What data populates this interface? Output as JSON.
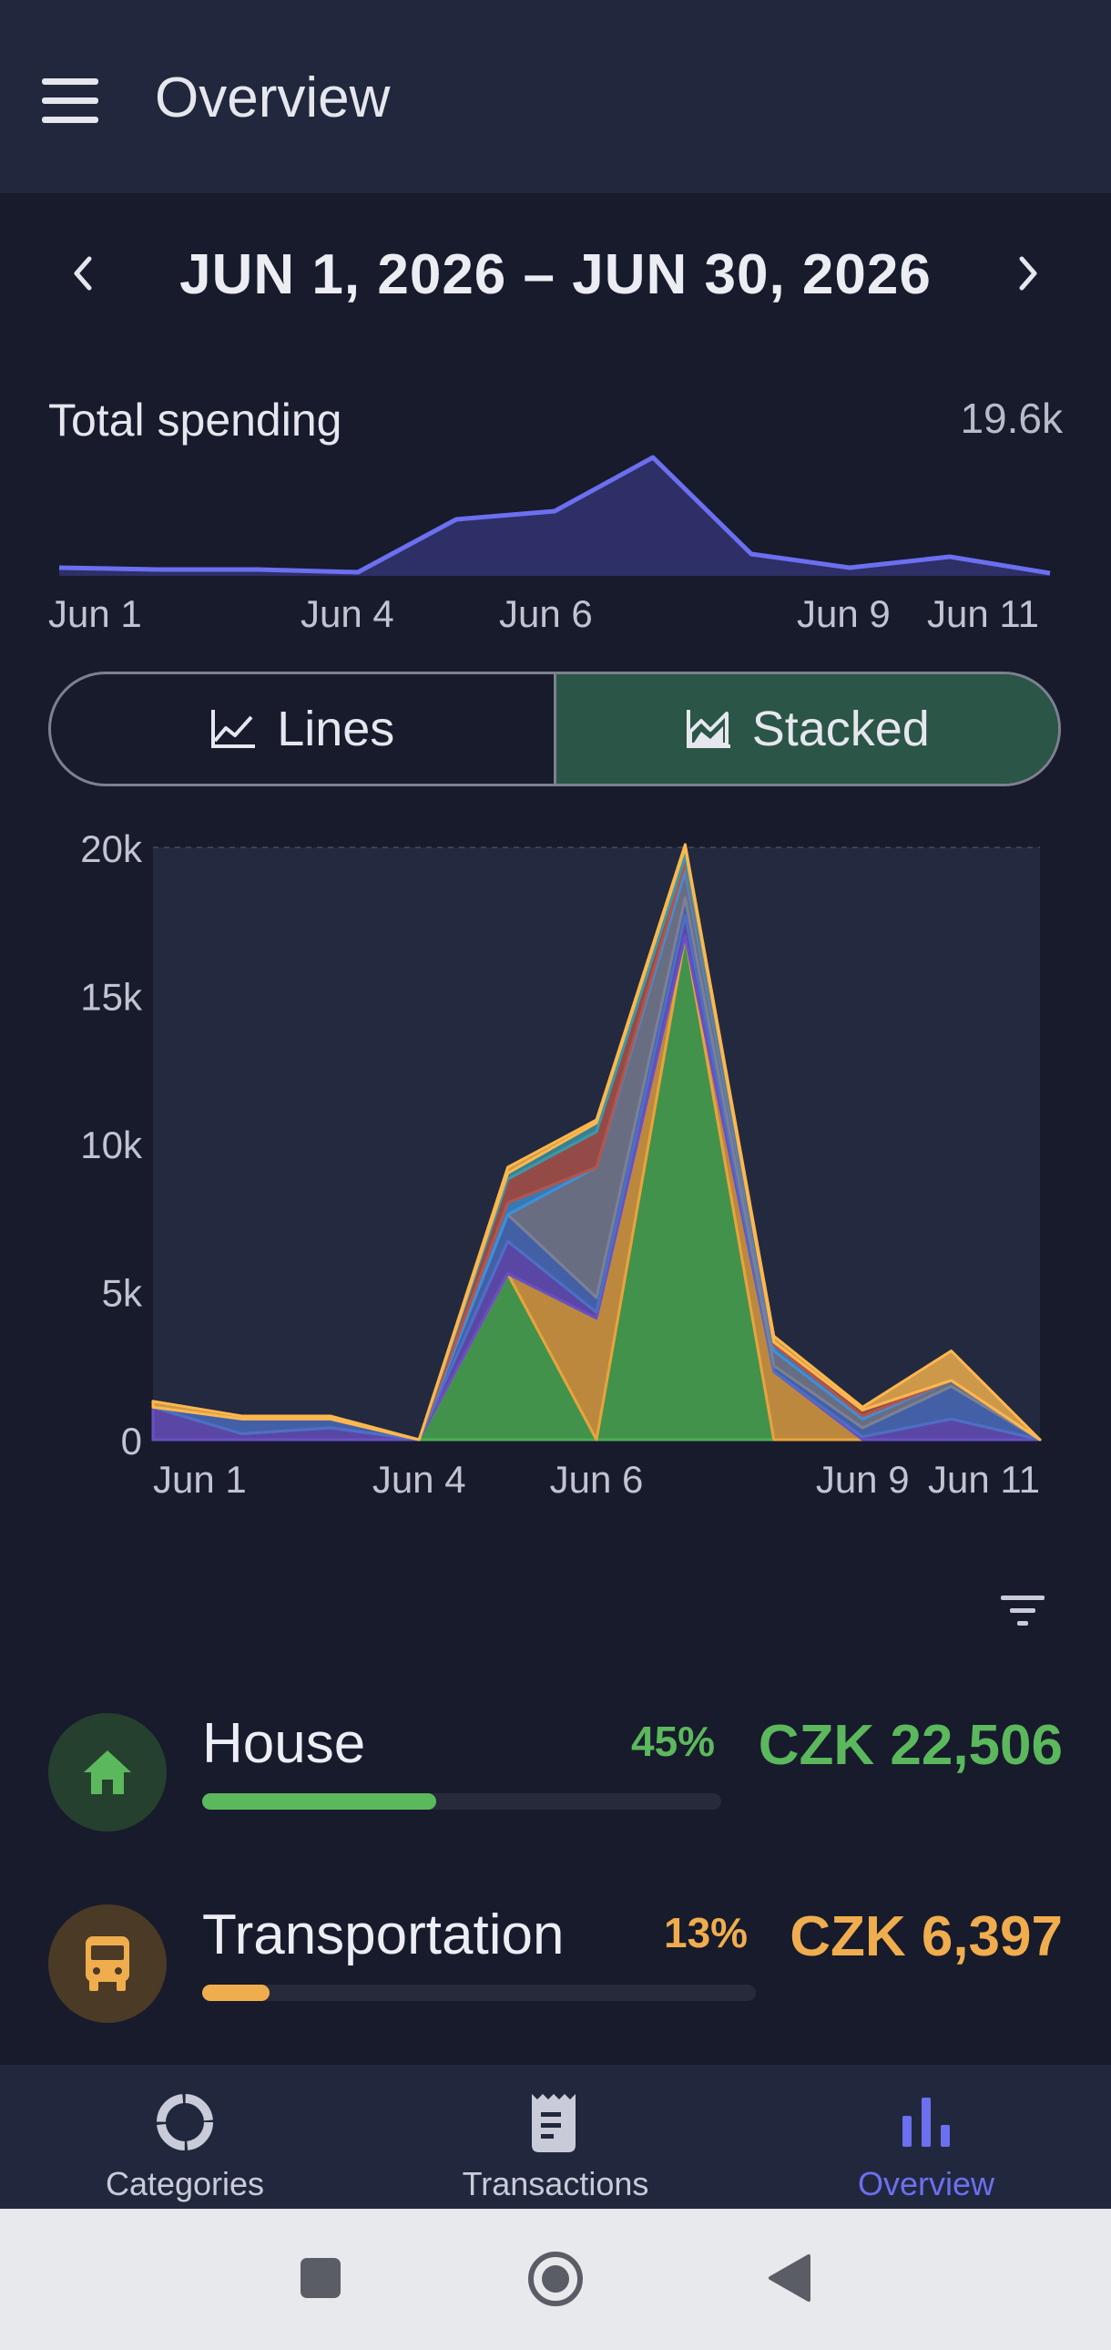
{
  "app": {
    "title": "Overview"
  },
  "date_range": {
    "label": "JUN 1, 2026 – JUN 30, 2026"
  },
  "total_spending": {
    "label": "Total spending",
    "value": "19.6k",
    "x_labels": [
      "Jun 1",
      "Jun 4",
      "Jun 6",
      "Jun 9",
      "Jun 11"
    ]
  },
  "view_toggle": {
    "lines_label": "Lines",
    "stacked_label": "Stacked",
    "selected": "Stacked"
  },
  "chart_data": {
    "type": "area",
    "stacked": true,
    "x": [
      "Jun 1",
      "Jun 2",
      "Jun 3",
      "Jun 4",
      "Jun 5",
      "Jun 6",
      "Jun 7",
      "Jun 8",
      "Jun 9",
      "Jun 10",
      "Jun 11"
    ],
    "x_tick_labels": [
      "Jun 1",
      "Jun 4",
      "Jun 6",
      "Jun 9",
      "Jun 11"
    ],
    "y_ticks": [
      "0",
      "5k",
      "10k",
      "15k",
      "20k"
    ],
    "ylim": [
      0,
      20000
    ],
    "series": [
      {
        "color": "#4caf50",
        "values": [
          0,
          0,
          0,
          0,
          5600,
          0,
          17000,
          0,
          0,
          0,
          0
        ]
      },
      {
        "color": "#e8a33d",
        "values": [
          0,
          0,
          0,
          0,
          0,
          4100,
          0,
          2300,
          0,
          0,
          0
        ]
      },
      {
        "color": "#6a4fc2",
        "values": [
          1100,
          200,
          400,
          0,
          1100,
          200,
          700,
          0,
          100,
          700,
          0
        ]
      },
      {
        "color": "#4d6fc4",
        "values": [
          0,
          500,
          300,
          0,
          900,
          500,
          600,
          200,
          300,
          1100,
          0
        ]
      },
      {
        "color": "#7c8094",
        "values": [
          0,
          0,
          0,
          0,
          0,
          4400,
          900,
          500,
          300,
          200,
          0
        ]
      },
      {
        "color": "#3e8fd6",
        "values": [
          0,
          0,
          0,
          0,
          400,
          0,
          300,
          200,
          100,
          0,
          0
        ]
      },
      {
        "color": "#b5544a",
        "values": [
          0,
          0,
          0,
          0,
          800,
          1200,
          200,
          100,
          200,
          0,
          0
        ]
      },
      {
        "color": "#3c98a8",
        "values": [
          0,
          0,
          0,
          0,
          200,
          300,
          300,
          0,
          0,
          0,
          0
        ]
      },
      {
        "color": "#ffb74d",
        "values": [
          200,
          100,
          100,
          0,
          200,
          100,
          100,
          200,
          100,
          1000,
          0
        ]
      }
    ]
  },
  "categories": [
    {
      "name": "House",
      "percent": "45%",
      "amount": "CZK 22,506",
      "fraction": 0.45,
      "color": "#5cb85c",
      "icon": "house-icon"
    },
    {
      "name": "Transportation",
      "percent": "13%",
      "amount": "CZK 6,397",
      "fraction": 0.13,
      "color": "#f0ad4e",
      "icon": "bus-icon"
    }
  ],
  "bottom_nav": {
    "items": [
      {
        "label": "Categories",
        "icon": "donut-icon"
      },
      {
        "label": "Transactions",
        "icon": "receipt-icon"
      },
      {
        "label": "Overview",
        "icon": "bar-chart-icon"
      }
    ],
    "selected": "Overview",
    "active_color": "#6c6ff0"
  }
}
